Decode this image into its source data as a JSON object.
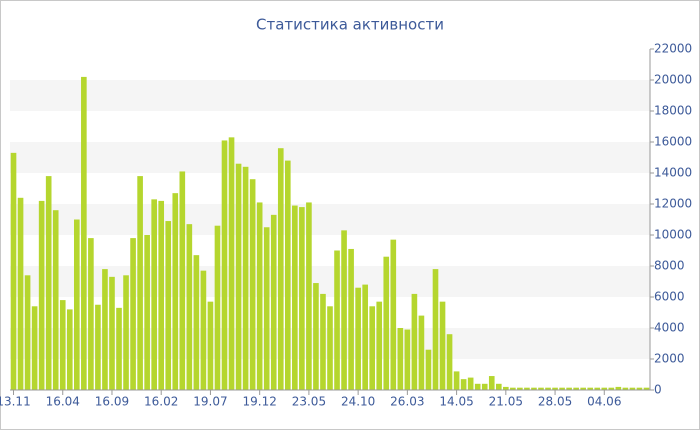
{
  "chart_data": {
    "type": "bar",
    "title": "Статистика активности",
    "categories": [
      "13.11",
      null,
      null,
      null,
      null,
      null,
      null,
      "16.04",
      null,
      null,
      null,
      null,
      null,
      null,
      "16.09",
      null,
      null,
      null,
      null,
      null,
      null,
      "16.02",
      null,
      null,
      null,
      null,
      null,
      null,
      "19.07",
      null,
      null,
      null,
      null,
      null,
      null,
      "19.12",
      null,
      null,
      null,
      null,
      null,
      null,
      "23.05",
      null,
      null,
      null,
      null,
      null,
      null,
      "24.10",
      null,
      null,
      null,
      null,
      null,
      null,
      "26.03",
      null,
      null,
      null,
      null,
      null,
      null,
      "14.05",
      null,
      null,
      null,
      null,
      null,
      null,
      "21.05",
      null,
      null,
      null,
      null,
      null,
      null,
      "28.05",
      null,
      null,
      null,
      null,
      null,
      null,
      "04.06",
      null,
      null,
      null,
      null,
      null,
      null
    ],
    "values": [
      15300,
      12400,
      7400,
      5400,
      12200,
      13800,
      11600,
      5800,
      5200,
      11000,
      20200,
      9800,
      5500,
      7800,
      7300,
      5300,
      7400,
      9800,
      13800,
      10000,
      12300,
      12200,
      10900,
      12700,
      14100,
      10700,
      8700,
      7700,
      5700,
      10600,
      16100,
      16300,
      14600,
      14400,
      13600,
      12100,
      10500,
      11300,
      15600,
      14800,
      11900,
      11800,
      12100,
      6900,
      6200,
      5400,
      9000,
      10300,
      9100,
      6600,
      6800,
      5400,
      5700,
      8600,
      9700,
      4000,
      3900,
      6200,
      4800,
      2600,
      7800,
      5700,
      3600,
      1200,
      700,
      800,
      400,
      400,
      900,
      400,
      200,
      150,
      150,
      150,
      150,
      150,
      150,
      150,
      150,
      150,
      150,
      150,
      150,
      150,
      150,
      150,
      200,
      150,
      150,
      150,
      150
    ],
    "color": "#b5d62e",
    "ylim": [
      0,
      22000
    ],
    "yticks": [
      0,
      2000,
      4000,
      6000,
      8000,
      10000,
      12000,
      14000,
      16000,
      18000,
      20000,
      22000
    ],
    "grid": true
  }
}
